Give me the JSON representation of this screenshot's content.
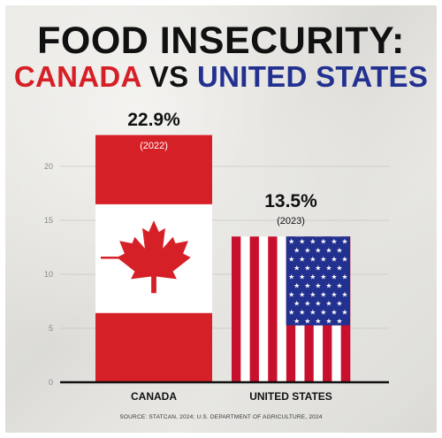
{
  "title": {
    "line1": "FOOD INSECURITY:",
    "left": "CANADA",
    "vs": "VS",
    "right": "UNITED STATES"
  },
  "source": "SOURCE: STATCAN, 2024; U.S. DEPARTMENT OF AGRICULTURE, 2024",
  "colors": {
    "canada": "#d62027",
    "usa_red": "#c8102e",
    "usa_blue": "#22318f",
    "title_dark": "#111111"
  },
  "chart_data": {
    "type": "bar",
    "categories": [
      "CANADA",
      "UNITED STATES"
    ],
    "values": [
      22.9,
      13.5
    ],
    "value_labels": [
      "22.9%",
      "13.5%"
    ],
    "year_labels": [
      "(2022)",
      "(2023)"
    ],
    "bar_styles": [
      "canada-flag",
      "us-flag"
    ],
    "yticks": [
      0,
      5,
      10,
      15,
      20
    ],
    "ylim": [
      0,
      25
    ],
    "grid": true,
    "xlabel": "",
    "ylabel": ""
  }
}
